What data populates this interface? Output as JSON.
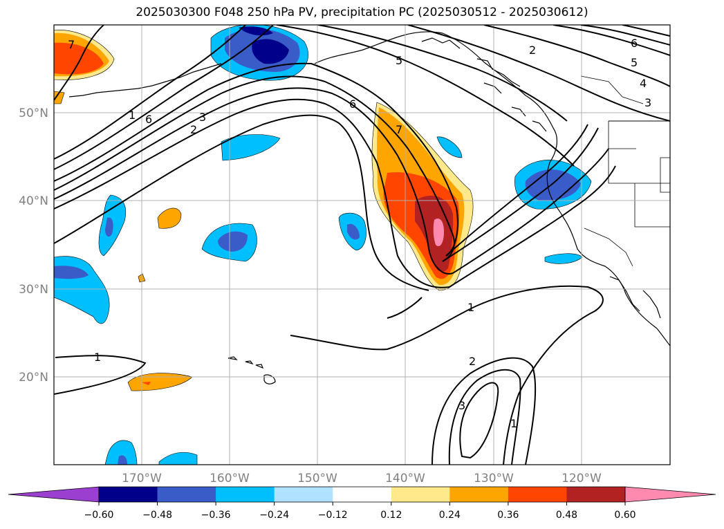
{
  "title": "2025030300 F048 250 hPa PV, precipitation PC (2025030512 - 2025030612)",
  "map": {
    "lat_labels": [
      "50°N",
      "40°N",
      "30°N",
      "20°N"
    ],
    "lon_labels": [
      "170°W",
      "160°W",
      "150°W",
      "140°W",
      "130°W",
      "120°W"
    ]
  },
  "contour_labels": [
    "7",
    "1",
    "6",
    "3",
    "2",
    "5",
    "6",
    "7",
    "2",
    "6",
    "5",
    "4",
    "3",
    "1",
    "1",
    "2",
    "3",
    "1"
  ],
  "colorbar": {
    "colors": [
      "#9a3fd0",
      "#00008b",
      "#3a5cc8",
      "#00bfff",
      "#b0e2ff",
      "#ffffff",
      "#ffe98a",
      "#ffa500",
      "#ff4500",
      "#b22222",
      "#ff8ab0"
    ],
    "ticks": [
      "−0.60",
      "−0.48",
      "−0.36",
      "−0.24",
      "−0.12",
      "0.12",
      "0.24",
      "0.36",
      "0.48",
      "0.60"
    ]
  }
}
